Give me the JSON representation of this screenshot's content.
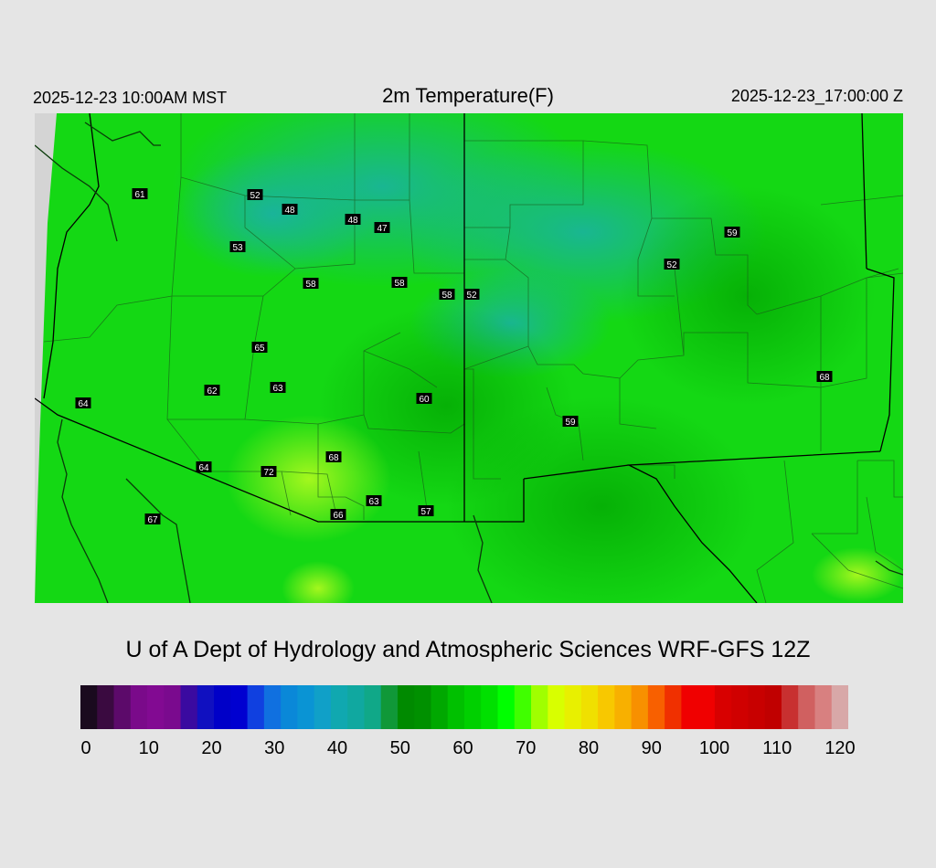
{
  "header": {
    "local_time": "2025-12-23 10:00AM MST",
    "title": "2m Temperature(F)",
    "utc_time": "2025-12-23_17:00:00 Z"
  },
  "credit": "U of A Dept of Hydrology and Atmospheric Sciences WRF-GFS 12Z",
  "map": {
    "field": "2m temperature",
    "units": "F",
    "stations": [
      {
        "label": "61",
        "value": 61
      },
      {
        "label": "52",
        "value": 52
      },
      {
        "label": "48",
        "value": 48
      },
      {
        "label": "48",
        "value": 48
      },
      {
        "label": "47",
        "value": 47
      },
      {
        "label": "53",
        "value": 53
      },
      {
        "label": "58",
        "value": 58
      },
      {
        "label": "58",
        "value": 58
      },
      {
        "label": "58",
        "value": 58
      },
      {
        "label": "52",
        "value": 52
      },
      {
        "label": "59",
        "value": 59
      },
      {
        "label": "52",
        "value": 52
      },
      {
        "label": "65",
        "value": 65
      },
      {
        "label": "62",
        "value": 62
      },
      {
        "label": "63",
        "value": 63
      },
      {
        "label": "60",
        "value": 60
      },
      {
        "label": "64",
        "value": 64
      },
      {
        "label": "59",
        "value": 59
      },
      {
        "label": "68",
        "value": 68
      },
      {
        "label": "68",
        "value": 68
      },
      {
        "label": "64",
        "value": 64
      },
      {
        "label": "72",
        "value": 72
      },
      {
        "label": "63",
        "value": 63
      },
      {
        "label": "66",
        "value": 66
      },
      {
        "label": "57",
        "value": 57
      },
      {
        "label": "67",
        "value": 67
      }
    ]
  },
  "colorbar": {
    "ticks": [
      "0",
      "10",
      "20",
      "30",
      "40",
      "50",
      "60",
      "70",
      "80",
      "90",
      "100",
      "110",
      "120"
    ],
    "colors": [
      "#1a0a1e",
      "#3a0a40",
      "#5c0a6a",
      "#7a0a8a",
      "#820a92",
      "#7a0a8e",
      "#3a0aa0",
      "#1010c0",
      "#0000c8",
      "#0000d0",
      "#1040e0",
      "#1070e0",
      "#0a88d8",
      "#0a94d4",
      "#10a0c8",
      "#10a8b0",
      "#10a8a0",
      "#10a888",
      "#109838",
      "#008a00",
      "#009000",
      "#00a800",
      "#00c000",
      "#00d000",
      "#00e000",
      "#00ff00",
      "#40ff00",
      "#a0ff00",
      "#d8ff00",
      "#e8f000",
      "#f0e000",
      "#f8c800",
      "#f8b000",
      "#f89000",
      "#f86000",
      "#f03000",
      "#f00000",
      "#f00000",
      "#d80000",
      "#d00000",
      "#c80000",
      "#c00000",
      "#c83030",
      "#d06060",
      "#d88080",
      "#d8a8a8"
    ]
  }
}
